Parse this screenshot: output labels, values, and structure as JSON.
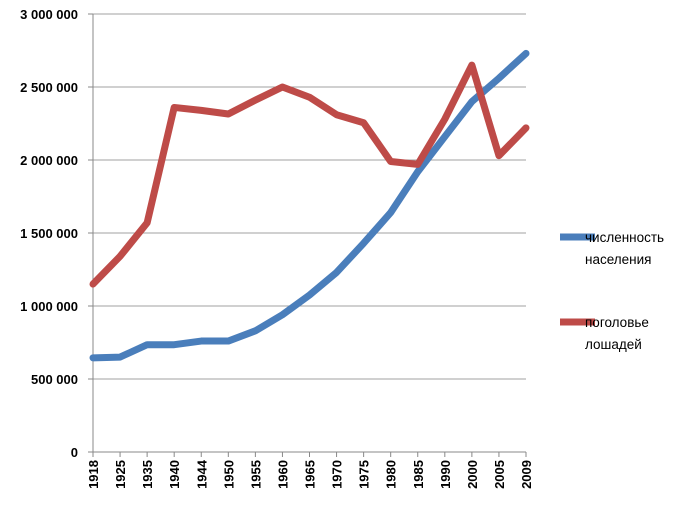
{
  "chart_data": {
    "type": "line",
    "categories": [
      "1918",
      "1925",
      "1935",
      "1940",
      "1944",
      "1950",
      "1955",
      "1960",
      "1965",
      "1970",
      "1975",
      "1980",
      "1985",
      "1990",
      "2000",
      "2005",
      "2009"
    ],
    "ylim": [
      0,
      3000000
    ],
    "yticks": [
      0,
      500000,
      1000000,
      1500000,
      2000000,
      2500000,
      3000000
    ],
    "ytick_labels": [
      "0",
      "500 000",
      "1 000 000",
      "1 500 000",
      "2 000 000",
      "2 500 000",
      "3 000 000"
    ],
    "grid": true,
    "legend_position": "right",
    "series": [
      {
        "name_lines": [
          "численность",
          "населения"
        ],
        "color": "#4a7ebb",
        "values": [
          645000,
          650000,
          735000,
          735000,
          760000,
          760000,
          830000,
          940000,
          1075000,
          1230000,
          1430000,
          1640000,
          1920000,
          2160000,
          2400000,
          2560000,
          2730000
        ]
      },
      {
        "name_lines": [
          "поголовье",
          "лошадей"
        ],
        "color": "#be4b48",
        "values": [
          1150000,
          1340000,
          1570000,
          2360000,
          2340000,
          2315000,
          2410000,
          2500000,
          2430000,
          2310000,
          2255000,
          1990000,
          1970000,
          2280000,
          2650000,
          2030000,
          2220000
        ]
      }
    ]
  }
}
